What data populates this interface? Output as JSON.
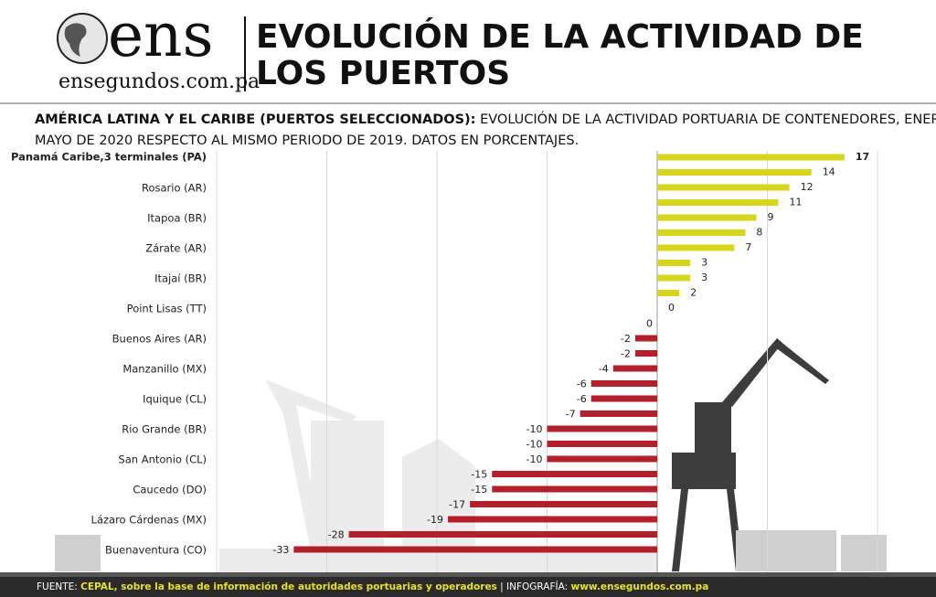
{
  "header": {
    "logo": "ens",
    "site": "ensegundos.com.pa",
    "title_line1": "EVOLUCIÓN DE LA ACTIVIDAD DE",
    "title_line2": "LOS PUERTOS"
  },
  "chart_data": {
    "type": "hbar",
    "subtitle_bold": "AMÉRICA LATINA Y EL CARIBE (PUERTOS SELECCIONADOS):",
    "subtitle_line1": "EVOLUCIÓN DE LA ACTIVIDAD PORTUARIA DE CONTENEDORES, ENERO A",
    "subtitle_line2": "MAYO DE 2020 RESPECTO AL MISMO PERIODO DE 2019. DATOS EN PORCENTAJES.",
    "categories": [
      "Panamá Caribe,3 terminales (PA)",
      null,
      "Rosario (AR)",
      null,
      "Itapoa (BR)",
      null,
      "Zárate (AR)",
      null,
      "Itajaí (BR)",
      null,
      "Point Lisas (TT)",
      null,
      "Buenos Aires (AR)",
      null,
      "Manzanillo (MX)",
      null,
      "Iquique (CL)",
      null,
      "Rio Grande (BR)",
      null,
      "San Antonio (CL)",
      null,
      "Caucedo (DO)",
      null,
      "Lázaro Cárdenas (MX)",
      null,
      "Buenaventura (CO)"
    ],
    "values": [
      17,
      14,
      12,
      11,
      9,
      8,
      7,
      3,
      3,
      2,
      0,
      0,
      -2,
      -2,
      -4,
      -6,
      -6,
      -7,
      -10,
      -10,
      -10,
      -15,
      -15,
      -17,
      -19,
      -28,
      -33
    ],
    "colors": [
      "#d8d61c",
      "#d8d61c",
      "#d8d61c",
      "#d8d61c",
      "#d8d61c",
      "#d8d61c",
      "#d8d61c",
      "#d8d61c",
      "#d8d61c",
      "#d8d61c",
      "#d8d61c",
      "#b3202c",
      "#b3202c",
      "#b3202c",
      "#b3202c",
      "#b3202c",
      "#b3202c",
      "#b3202c",
      "#b3202c",
      "#b3202c",
      "#b3202c",
      "#b3202c",
      "#b3202c",
      "#b3202c",
      "#b3202c",
      "#b3202c",
      "#b3202c"
    ],
    "xlim": [
      -40,
      20
    ],
    "xticks": [
      -40,
      -30,
      -20,
      -10,
      0,
      10,
      20
    ],
    "grid": true
  },
  "footer": {
    "source_label": "FUENTE:",
    "source": "CEPAL, sobre la base de información de autoridades portuarias y operadores",
    "sep": "| INFOGRAFÍA:",
    "credit": "www.ensegundos.com.pa"
  }
}
